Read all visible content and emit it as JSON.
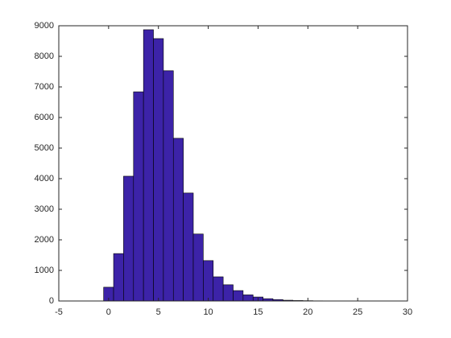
{
  "chart_data": {
    "type": "histogram",
    "bins": [
      -0.5,
      0.5,
      1.5,
      2.5,
      3.5,
      4.5,
      5.5,
      6.5,
      7.5,
      8.5,
      9.5,
      10.5,
      11.5,
      12.5,
      13.5,
      14.5,
      15.5,
      16.5,
      17.5,
      18.5,
      19.5,
      20.5,
      21.5,
      22.5,
      23.5,
      24.5,
      25.5
    ],
    "values": [
      450,
      1550,
      4080,
      6840,
      8870,
      8580,
      7530,
      5320,
      3530,
      2190,
      1320,
      790,
      530,
      340,
      200,
      130,
      75,
      45,
      25,
      15,
      10,
      6,
      4,
      3,
      2,
      1
    ],
    "color": "#3c23a8",
    "xlim": [
      -5,
      30
    ],
    "xticks": [
      -5,
      0,
      5,
      10,
      15,
      20,
      25,
      30
    ],
    "ylim": [
      0,
      9000
    ],
    "yticks": [
      0,
      1000,
      2000,
      3000,
      4000,
      5000,
      6000,
      7000,
      8000,
      9000
    ],
    "grid": false
  }
}
